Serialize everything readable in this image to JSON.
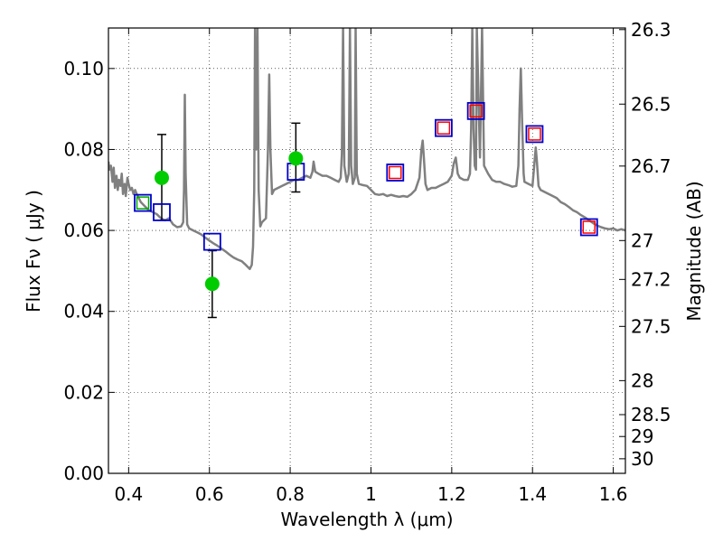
{
  "chart_data": {
    "type": "scatter",
    "xlabel": "Wavelength  λ (μm)",
    "ylabel": "Flux  Fν  ( μJy )",
    "y2label": "Magnitude (AB)",
    "xlim": [
      0.35,
      1.63
    ],
    "ylim": [
      0.0,
      0.11
    ],
    "grid": true,
    "x_ticks": [
      0.4,
      0.6,
      0.8,
      1.0,
      1.2,
      1.4,
      1.6
    ],
    "x_tick_labels": [
      "0.4",
      "0.6",
      "0.8",
      "1",
      "1.2",
      "1.4",
      "1.6"
    ],
    "y_ticks": [
      0.0,
      0.02,
      0.04,
      0.06,
      0.08,
      0.1
    ],
    "y_tick_labels": [
      "0.00",
      "0.02",
      "0.04",
      "0.06",
      "0.08",
      "0.10"
    ],
    "mag_ticks": [
      {
        "label": "26.3",
        "flux": 0.1096
      },
      {
        "label": "26.5",
        "flux": 0.0912
      },
      {
        "label": "26.7",
        "flux": 0.0759
      },
      {
        "label": "27",
        "flux": 0.0575
      },
      {
        "label": "27.2",
        "flux": 0.0479
      },
      {
        "label": "27.5",
        "flux": 0.0363
      },
      {
        "label": "28",
        "flux": 0.0229
      },
      {
        "label": "28.5",
        "flux": 0.0145
      },
      {
        "label": "29",
        "flux": 0.0091
      },
      {
        "label": "30",
        "flux": 0.0036
      }
    ],
    "model_spectrum": {
      "color": "#808080",
      "points": [
        [
          0.35,
          0.077
        ],
        [
          0.352,
          0.075
        ],
        [
          0.356,
          0.076
        ],
        [
          0.36,
          0.072
        ],
        [
          0.363,
          0.0755
        ],
        [
          0.366,
          0.0705
        ],
        [
          0.37,
          0.0735
        ],
        [
          0.373,
          0.07
        ],
        [
          0.376,
          0.0725
        ],
        [
          0.38,
          0.071
        ],
        [
          0.383,
          0.074
        ],
        [
          0.386,
          0.069
        ],
        [
          0.39,
          0.0715
        ],
        [
          0.393,
          0.0685
        ],
        [
          0.397,
          0.073
        ],
        [
          0.4,
          0.0715
        ],
        [
          0.404,
          0.07
        ],
        [
          0.408,
          0.0705
        ],
        [
          0.412,
          0.069
        ],
        [
          0.416,
          0.07
        ],
        [
          0.42,
          0.069
        ],
        [
          0.425,
          0.068
        ],
        [
          0.43,
          0.067
        ],
        [
          0.435,
          0.0665
        ],
        [
          0.44,
          0.066
        ],
        [
          0.45,
          0.065
        ],
        [
          0.46,
          0.0645
        ],
        [
          0.47,
          0.064
        ],
        [
          0.48,
          0.063
        ],
        [
          0.49,
          0.0625
        ],
        [
          0.5,
          0.063
        ],
        [
          0.51,
          0.0615
        ],
        [
          0.52,
          0.0608
        ],
        [
          0.53,
          0.061
        ],
        [
          0.535,
          0.062
        ],
        [
          0.537,
          0.07
        ],
        [
          0.539,
          0.0935
        ],
        [
          0.541,
          0.074
        ],
        [
          0.545,
          0.0615
        ],
        [
          0.55,
          0.0605
        ],
        [
          0.56,
          0.06
        ],
        [
          0.57,
          0.0595
        ],
        [
          0.58,
          0.059
        ],
        [
          0.59,
          0.0582
        ],
        [
          0.6,
          0.0575
        ],
        [
          0.61,
          0.0568
        ],
        [
          0.62,
          0.0562
        ],
        [
          0.63,
          0.0555
        ],
        [
          0.64,
          0.0548
        ],
        [
          0.65,
          0.054
        ],
        [
          0.66,
          0.0533
        ],
        [
          0.67,
          0.0528
        ],
        [
          0.68,
          0.0524
        ],
        [
          0.69,
          0.0515
        ],
        [
          0.7,
          0.0505
        ],
        [
          0.705,
          0.0515
        ],
        [
          0.708,
          0.056
        ],
        [
          0.711,
          0.07
        ],
        [
          0.713,
          0.11
        ],
        [
          0.716,
          0.08
        ],
        [
          0.719,
          0.11
        ],
        [
          0.722,
          0.07
        ],
        [
          0.726,
          0.061
        ],
        [
          0.73,
          0.062
        ],
        [
          0.74,
          0.063
        ],
        [
          0.745,
          0.08
        ],
        [
          0.748,
          0.0985
        ],
        [
          0.751,
          0.08
        ],
        [
          0.755,
          0.069
        ],
        [
          0.76,
          0.07
        ],
        [
          0.77,
          0.0705
        ],
        [
          0.78,
          0.071
        ],
        [
          0.79,
          0.0715
        ],
        [
          0.8,
          0.072
        ],
        [
          0.81,
          0.0725
        ],
        [
          0.82,
          0.0725
        ],
        [
          0.83,
          0.073
        ],
        [
          0.84,
          0.0735
        ],
        [
          0.85,
          0.073
        ],
        [
          0.855,
          0.0745
        ],
        [
          0.858,
          0.077
        ],
        [
          0.862,
          0.0745
        ],
        [
          0.87,
          0.074
        ],
        [
          0.88,
          0.0735
        ],
        [
          0.89,
          0.0735
        ],
        [
          0.9,
          0.073
        ],
        [
          0.91,
          0.0725
        ],
        [
          0.92,
          0.072
        ],
        [
          0.925,
          0.073
        ],
        [
          0.928,
          0.079
        ],
        [
          0.931,
          0.11
        ],
        [
          0.934,
          0.076
        ],
        [
          0.94,
          0.072
        ],
        [
          0.945,
          0.074
        ],
        [
          0.948,
          0.11
        ],
        [
          0.951,
          0.076
        ],
        [
          0.955,
          0.0715
        ],
        [
          0.96,
          0.073
        ],
        [
          0.962,
          0.11
        ],
        [
          0.965,
          0.074
        ],
        [
          0.97,
          0.0715
        ],
        [
          0.98,
          0.0712
        ],
        [
          0.99,
          0.071
        ],
        [
          1.0,
          0.07
        ],
        [
          1.01,
          0.069
        ],
        [
          1.02,
          0.0688
        ],
        [
          1.03,
          0.069
        ],
        [
          1.04,
          0.0685
        ],
        [
          1.05,
          0.0688
        ],
        [
          1.06,
          0.0685
        ],
        [
          1.07,
          0.0683
        ],
        [
          1.08,
          0.0685
        ],
        [
          1.09,
          0.0683
        ],
        [
          1.1,
          0.069
        ],
        [
          1.11,
          0.07
        ],
        [
          1.12,
          0.073
        ],
        [
          1.125,
          0.08
        ],
        [
          1.128,
          0.0822
        ],
        [
          1.131,
          0.078
        ],
        [
          1.135,
          0.0715
        ],
        [
          1.14,
          0.07
        ],
        [
          1.15,
          0.0705
        ],
        [
          1.16,
          0.0705
        ],
        [
          1.17,
          0.071
        ],
        [
          1.18,
          0.0715
        ],
        [
          1.19,
          0.072
        ],
        [
          1.2,
          0.0735
        ],
        [
          1.205,
          0.0765
        ],
        [
          1.21,
          0.078
        ],
        [
          1.215,
          0.074
        ],
        [
          1.22,
          0.073
        ],
        [
          1.23,
          0.0725
        ],
        [
          1.24,
          0.0725
        ],
        [
          1.245,
          0.074
        ],
        [
          1.248,
          0.085
        ],
        [
          1.251,
          0.11
        ],
        [
          1.254,
          0.085
        ],
        [
          1.257,
          0.076
        ],
        [
          1.26,
          0.075
        ],
        [
          1.262,
          0.11
        ],
        [
          1.27,
          0.078
        ],
        [
          1.275,
          0.11
        ],
        [
          1.28,
          0.076
        ],
        [
          1.29,
          0.074
        ],
        [
          1.3,
          0.0725
        ],
        [
          1.31,
          0.072
        ],
        [
          1.32,
          0.072
        ],
        [
          1.33,
          0.0715
        ],
        [
          1.34,
          0.0712
        ],
        [
          1.35,
          0.0708
        ],
        [
          1.36,
          0.071
        ],
        [
          1.365,
          0.076
        ],
        [
          1.368,
          0.09
        ],
        [
          1.371,
          0.1
        ],
        [
          1.374,
          0.088
        ],
        [
          1.378,
          0.074
        ],
        [
          1.38,
          0.072
        ],
        [
          1.39,
          0.0715
        ],
        [
          1.4,
          0.071
        ],
        [
          1.405,
          0.077
        ],
        [
          1.408,
          0.0805
        ],
        [
          1.411,
          0.077
        ],
        [
          1.415,
          0.071
        ],
        [
          1.42,
          0.07
        ],
        [
          1.43,
          0.0695
        ],
        [
          1.44,
          0.069
        ],
        [
          1.45,
          0.0685
        ],
        [
          1.46,
          0.068
        ],
        [
          1.47,
          0.067
        ],
        [
          1.48,
          0.0665
        ],
        [
          1.49,
          0.0658
        ],
        [
          1.5,
          0.065
        ],
        [
          1.51,
          0.0645
        ],
        [
          1.52,
          0.0638
        ],
        [
          1.53,
          0.0632
        ],
        [
          1.54,
          0.0625
        ],
        [
          1.55,
          0.0618
        ],
        [
          1.56,
          0.0612
        ],
        [
          1.57,
          0.0608
        ],
        [
          1.58,
          0.0605
        ],
        [
          1.59,
          0.0603
        ],
        [
          1.6,
          0.0605
        ],
        [
          1.61,
          0.06
        ],
        [
          1.62,
          0.0603
        ],
        [
          1.63,
          0.06
        ]
      ]
    },
    "model_photometry_blue": {
      "color": "#0000cc",
      "x": [
        0.435,
        0.482,
        0.607,
        0.814,
        1.06,
        1.18,
        1.26,
        1.405,
        1.54
      ],
      "y": [
        0.0668,
        0.0645,
        0.0572,
        0.0745,
        0.0743,
        0.0853,
        0.0895,
        0.0838,
        0.0608
      ]
    },
    "model_photometry_red": {
      "color": "#ff0000",
      "x": [
        1.06,
        1.18,
        1.26,
        1.405,
        1.54
      ],
      "y": [
        0.0743,
        0.0853,
        0.0895,
        0.0838,
        0.0608
      ]
    },
    "model_photometry_green": {
      "color": "#00aa00",
      "x": [
        0.435
      ],
      "y": [
        0.0668
      ]
    },
    "observed": {
      "color": "#00cc00",
      "x": [
        0.482,
        0.607,
        0.814
      ],
      "y": [
        0.073,
        0.0468,
        0.0778
      ],
      "err_low": [
        0.0625,
        0.0385,
        0.0695
      ],
      "err_high": [
        0.0837,
        0.055,
        0.0865
      ]
    }
  }
}
